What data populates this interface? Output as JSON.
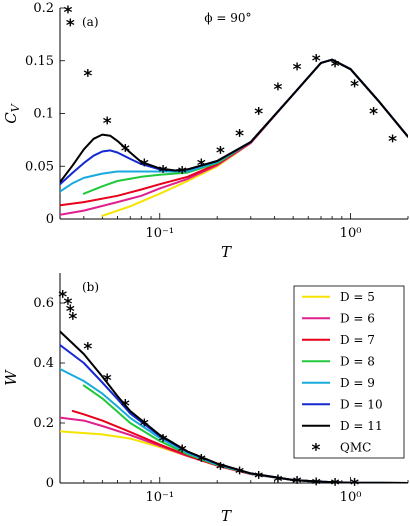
{
  "chart_data": [
    {
      "type": "line",
      "panel_label": "(a)",
      "annotation": "ϕ = 90°",
      "xlabel": "T",
      "ylabel": "C_V",
      "xscale": "log",
      "xlim": [
        0.03,
        2.0
      ],
      "ylim": [
        0,
        0.2
      ],
      "xticks": [
        {
          "value": 0.1,
          "label": "10⁻¹"
        },
        {
          "value": 1,
          "label": "10⁰"
        }
      ],
      "yticks": [
        {
          "value": 0,
          "label": "0"
        },
        {
          "value": 0.05,
          "label": "0.05"
        },
        {
          "value": 0.1,
          "label": "0.1"
        },
        {
          "value": 0.15,
          "label": "0.15"
        },
        {
          "value": 0.2,
          "label": "0.2"
        }
      ],
      "series": [
        {
          "name": "D = 5",
          "color": "#f5e400",
          "x": [
            0.05,
            0.07,
            0.1,
            0.14,
            0.2,
            0.3,
            0.5,
            0.7,
            0.8,
            1.0,
            1.4,
            2.0
          ],
          "y": [
            0.003,
            0.012,
            0.024,
            0.036,
            0.05,
            0.072,
            0.118,
            0.148,
            0.151,
            0.142,
            0.112,
            0.078
          ]
        },
        {
          "name": "D = 6",
          "color": "#e0208c",
          "x": [
            0.03,
            0.04,
            0.06,
            0.08,
            0.1,
            0.14,
            0.2,
            0.3,
            0.5,
            0.7,
            0.8,
            1.0,
            1.4,
            2.0
          ],
          "y": [
            0.004,
            0.008,
            0.016,
            0.022,
            0.029,
            0.038,
            0.051,
            0.072,
            0.118,
            0.148,
            0.151,
            0.142,
            0.112,
            0.078
          ]
        },
        {
          "name": "D = 7",
          "color": "#e8001a",
          "x": [
            0.03,
            0.04,
            0.06,
            0.08,
            0.1,
            0.14,
            0.2,
            0.3,
            0.5,
            0.7,
            0.8,
            1.0,
            1.4,
            2.0
          ],
          "y": [
            0.013,
            0.016,
            0.022,
            0.028,
            0.033,
            0.04,
            0.052,
            0.073,
            0.118,
            0.148,
            0.151,
            0.142,
            0.112,
            0.078
          ]
        },
        {
          "name": "D = 8",
          "color": "#22c83c",
          "x": [
            0.04,
            0.05,
            0.06,
            0.08,
            0.1,
            0.14,
            0.2,
            0.3,
            0.5,
            0.7,
            0.8,
            1.0,
            1.4,
            2.0
          ],
          "y": [
            0.024,
            0.031,
            0.036,
            0.04,
            0.042,
            0.044,
            0.053,
            0.073,
            0.118,
            0.148,
            0.151,
            0.142,
            0.112,
            0.078
          ]
        },
        {
          "name": "D = 9",
          "color": "#18aadc",
          "x": [
            0.03,
            0.035,
            0.04,
            0.05,
            0.06,
            0.08,
            0.1,
            0.14,
            0.2,
            0.3,
            0.5,
            0.7,
            0.8,
            1.0,
            1.4,
            2.0
          ],
          "y": [
            0.026,
            0.034,
            0.039,
            0.043,
            0.045,
            0.045,
            0.045,
            0.045,
            0.054,
            0.073,
            0.118,
            0.148,
            0.151,
            0.142,
            0.112,
            0.078
          ]
        },
        {
          "name": "D = 10",
          "color": "#1428d2",
          "x": [
            0.03,
            0.035,
            0.04,
            0.045,
            0.05,
            0.055,
            0.06,
            0.07,
            0.08,
            0.1,
            0.12,
            0.14,
            0.2,
            0.3,
            0.5,
            0.7,
            0.8,
            1.0,
            1.4,
            2.0
          ],
          "y": [
            0.033,
            0.044,
            0.053,
            0.06,
            0.064,
            0.065,
            0.063,
            0.057,
            0.052,
            0.047,
            0.046,
            0.047,
            0.055,
            0.073,
            0.118,
            0.148,
            0.151,
            0.142,
            0.112,
            0.078
          ]
        },
        {
          "name": "D = 11",
          "color": "#000000",
          "x": [
            0.03,
            0.035,
            0.04,
            0.045,
            0.05,
            0.055,
            0.06,
            0.07,
            0.08,
            0.1,
            0.12,
            0.14,
            0.2,
            0.3,
            0.5,
            0.7,
            0.8,
            1.0,
            1.4,
            2.0
          ],
          "y": [
            0.035,
            0.051,
            0.066,
            0.076,
            0.08,
            0.079,
            0.074,
            0.063,
            0.054,
            0.048,
            0.046,
            0.047,
            0.055,
            0.073,
            0.118,
            0.148,
            0.151,
            0.142,
            0.112,
            0.078
          ]
        }
      ],
      "qmc": {
        "name": "QMC",
        "x": [
          0.033,
          0.034,
          0.042,
          0.053,
          0.066,
          0.083,
          0.104,
          0.131,
          0.165,
          0.208,
          0.262,
          0.33,
          0.416,
          0.524,
          0.66,
          0.83,
          1.05,
          1.32,
          1.66
        ],
        "y": [
          0.198,
          0.186,
          0.138,
          0.093,
          0.067,
          0.053,
          0.047,
          0.046,
          0.053,
          0.065,
          0.081,
          0.102,
          0.125,
          0.144,
          0.152,
          0.147,
          0.128,
          0.102,
          0.076
        ]
      }
    },
    {
      "type": "line",
      "panel_label": "(b)",
      "xlabel": "T",
      "ylabel": "W",
      "xscale": "log",
      "xlim": [
        0.03,
        2.0
      ],
      "ylim": [
        0,
        0.7
      ],
      "xticks": [
        {
          "value": 0.1,
          "label": "10⁻¹"
        },
        {
          "value": 1,
          "label": "10⁰"
        }
      ],
      "yticks": [
        {
          "value": 0,
          "label": "0"
        },
        {
          "value": 0.2,
          "label": "0.2"
        },
        {
          "value": 0.4,
          "label": "0.4"
        },
        {
          "value": 0.6,
          "label": "0.6"
        }
      ],
      "legend_position": "top-right",
      "series": [
        {
          "name": "D = 5",
          "color": "#f5e400",
          "x": [
            0.03,
            0.05,
            0.07,
            0.1,
            0.14,
            0.2,
            0.3,
            0.5,
            0.7,
            1.0,
            2.0
          ],
          "y": [
            0.172,
            0.162,
            0.148,
            0.12,
            0.09,
            0.058,
            0.03,
            0.01,
            0.004,
            0.001,
            0.0
          ]
        },
        {
          "name": "D = 6",
          "color": "#e0208c",
          "x": [
            0.03,
            0.04,
            0.05,
            0.07,
            0.1,
            0.14,
            0.2,
            0.3,
            0.5,
            0.7,
            1.0,
            2.0
          ],
          "y": [
            0.218,
            0.208,
            0.19,
            0.16,
            0.124,
            0.09,
            0.058,
            0.03,
            0.01,
            0.004,
            0.001,
            0.0
          ]
        },
        {
          "name": "D = 7",
          "color": "#e8001a",
          "x": [
            0.035,
            0.04,
            0.05,
            0.07,
            0.1,
            0.14,
            0.2,
            0.3,
            0.5,
            0.7,
            1.0,
            2.0
          ],
          "y": [
            0.24,
            0.229,
            0.208,
            0.17,
            0.128,
            0.092,
            0.058,
            0.03,
            0.01,
            0.004,
            0.001,
            0.0
          ]
        },
        {
          "name": "D = 8",
          "color": "#22c83c",
          "x": [
            0.04,
            0.05,
            0.06,
            0.07,
            0.1,
            0.14,
            0.2,
            0.3,
            0.5,
            0.7,
            1.0,
            2.0
          ],
          "y": [
            0.325,
            0.282,
            0.238,
            0.2,
            0.14,
            0.096,
            0.06,
            0.031,
            0.01,
            0.004,
            0.001,
            0.0
          ]
        },
        {
          "name": "D = 9",
          "color": "#18aadc",
          "x": [
            0.03,
            0.04,
            0.05,
            0.06,
            0.07,
            0.1,
            0.14,
            0.2,
            0.3,
            0.5,
            0.7,
            1.0,
            2.0
          ],
          "y": [
            0.38,
            0.34,
            0.298,
            0.255,
            0.217,
            0.15,
            0.1,
            0.062,
            0.031,
            0.01,
            0.004,
            0.001,
            0.0
          ]
        },
        {
          "name": "D = 10",
          "color": "#1428d2",
          "x": [
            0.03,
            0.04,
            0.05,
            0.06,
            0.07,
            0.1,
            0.14,
            0.2,
            0.3,
            0.5,
            0.7,
            1.0,
            2.0
          ],
          "y": [
            0.46,
            0.4,
            0.335,
            0.28,
            0.232,
            0.157,
            0.104,
            0.064,
            0.032,
            0.01,
            0.004,
            0.001,
            0.0
          ]
        },
        {
          "name": "D = 11",
          "color": "#000000",
          "x": [
            0.03,
            0.04,
            0.05,
            0.06,
            0.07,
            0.1,
            0.14,
            0.2,
            0.3,
            0.5,
            0.7,
            1.0,
            2.0
          ],
          "y": [
            0.505,
            0.43,
            0.355,
            0.29,
            0.24,
            0.16,
            0.105,
            0.065,
            0.032,
            0.01,
            0.004,
            0.001,
            0.0
          ]
        }
      ],
      "qmc": {
        "name": "QMC",
        "x": [
          0.031,
          0.033,
          0.034,
          0.035,
          0.042,
          0.053,
          0.066,
          0.083,
          0.104,
          0.131,
          0.165,
          0.208,
          0.262,
          0.33,
          0.416,
          0.524,
          0.66,
          0.83,
          1.05
        ],
        "y": [
          0.628,
          0.605,
          0.58,
          0.555,
          0.455,
          0.35,
          0.265,
          0.2,
          0.148,
          0.113,
          0.082,
          0.055,
          0.04,
          0.025,
          0.014,
          0.008,
          0.004,
          0.002,
          0.001
        ]
      }
    }
  ]
}
